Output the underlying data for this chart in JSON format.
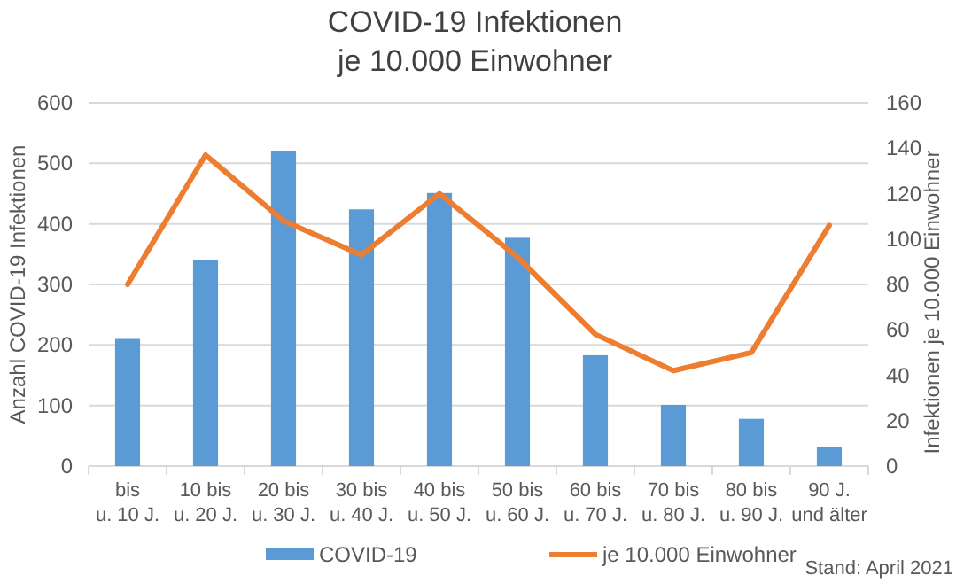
{
  "chart_data": {
    "type": "bar",
    "title": "COVID-19 Infektionen\nje 10.000 Einwohner",
    "ylabel": "Anzahl COVID-19 Infektionen",
    "y2label": "Infektionen je 10.000 Einwohner",
    "categories": [
      "bis\nu. 10 J.",
      "10 bis\nu. 20 J.",
      "20 bis\nu. 30 J.",
      "30 bis\nu. 40 J.",
      "40 bis\nu. 50 J.",
      "50 bis\nu. 60 J.",
      "60 bis\nu. 70 J.",
      "70 bis\nu. 80 J.",
      "80 bis\nu. 90 J.",
      "90 J.\nund älter"
    ],
    "series": [
      {
        "name": "COVID-19",
        "color": "#5b9bd5",
        "values": [
          210,
          340,
          521,
          424,
          451,
          377,
          183,
          101,
          78,
          32
        ]
      },
      {
        "name": "je 10.000 Einwohner",
        "type": "line",
        "axis": "y2",
        "color": "#ed7d31",
        "values": [
          80,
          137,
          108,
          93,
          120,
          92,
          58,
          42,
          50,
          106
        ]
      }
    ],
    "ylim": [
      0,
      600
    ],
    "yticks": [
      0,
      100,
      200,
      300,
      400,
      500,
      600
    ],
    "y2lim": [
      0,
      160
    ],
    "y2ticks": [
      0,
      20,
      40,
      60,
      80,
      100,
      120,
      140,
      160
    ],
    "grid": "y",
    "legend": "bottom",
    "annotations": [
      "Stand: April 2021"
    ]
  }
}
